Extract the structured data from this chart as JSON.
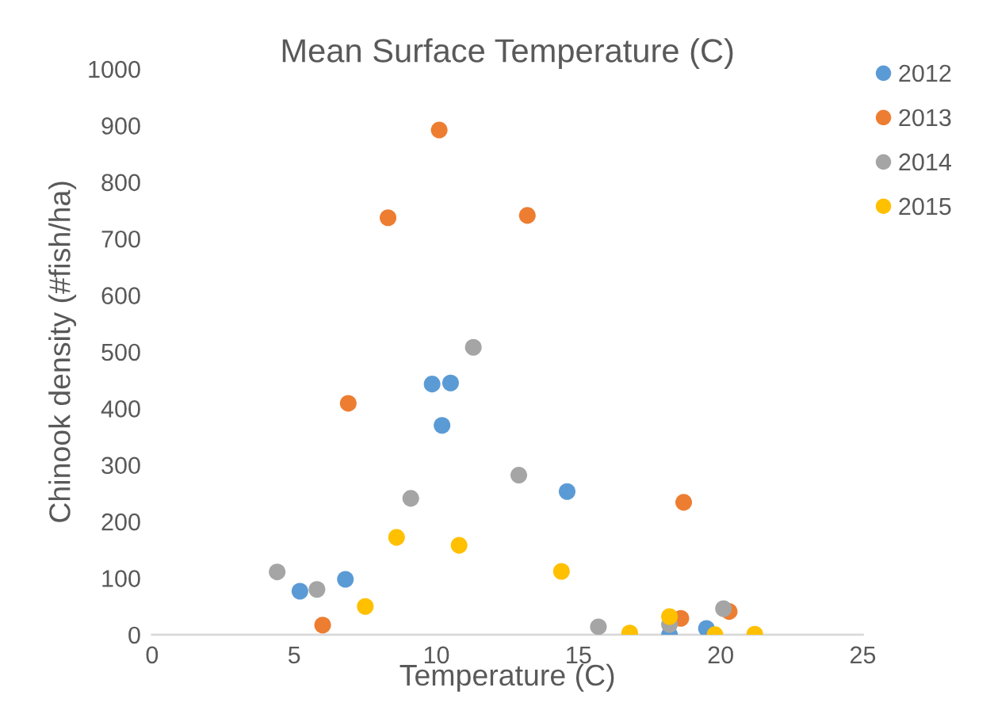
{
  "chart_data": {
    "type": "scatter",
    "title": "Mean Surface Temperature (C)",
    "xlabel": "Temperature (C)",
    "ylabel": "Chinook density (#fish/ha)",
    "xlim": [
      0,
      25
    ],
    "xticks": [
      0,
      5,
      10,
      15,
      20,
      25
    ],
    "ylim": [
      0,
      1000
    ],
    "yticks": [
      0,
      100,
      200,
      300,
      400,
      500,
      600,
      700,
      800,
      900,
      1000
    ],
    "grid": false,
    "legend": "top right",
    "marker": "circle",
    "series": [
      {
        "name": "2012",
        "color": "#5b9bd5",
        "x": [
          5.2,
          6.8,
          9.85,
          10.5,
          10.2,
          14.6,
          18.2,
          19.5
        ],
        "values": [
          77,
          98,
          443,
          445,
          370,
          253,
          0,
          11
        ]
      },
      {
        "name": "2013",
        "color": "#ed7d31",
        "x": [
          6.0,
          6.9,
          8.3,
          10.1,
          13.2,
          18.7,
          18.6,
          20.3
        ],
        "values": [
          17,
          409,
          737,
          892,
          741,
          234,
          29,
          41
        ]
      },
      {
        "name": "2014",
        "color": "#a5a5a5",
        "x": [
          4.4,
          5.8,
          9.1,
          11.3,
          12.9,
          15.7,
          18.2,
          20.1
        ],
        "values": [
          111,
          80,
          241,
          508,
          282,
          14,
          18,
          46
        ]
      },
      {
        "name": "2015",
        "color": "#ffc000",
        "x": [
          7.5,
          8.6,
          10.8,
          14.4,
          16.8,
          18.2,
          19.8,
          21.2
        ],
        "values": [
          50,
          172,
          158,
          112,
          3,
          32,
          0,
          1
        ]
      }
    ]
  }
}
